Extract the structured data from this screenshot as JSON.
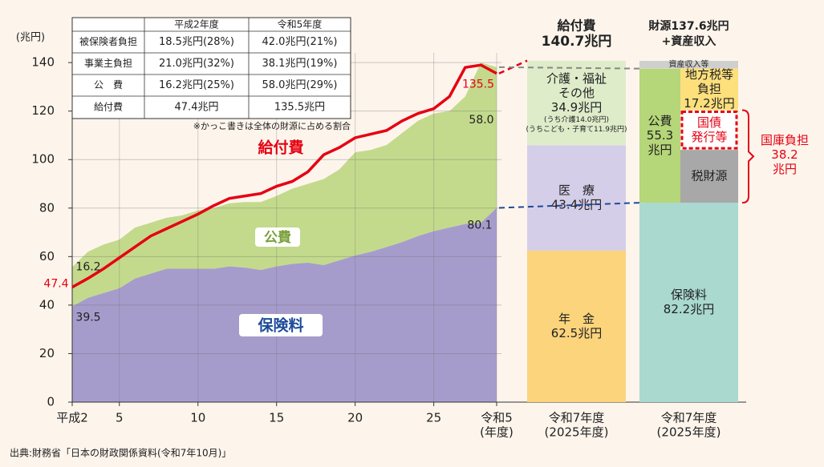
{
  "chart_data": {
    "type": "area",
    "y_label": "(兆円)",
    "x": [
      2,
      3,
      4,
      5,
      6,
      7,
      8,
      9,
      10,
      11,
      12,
      13,
      14,
      15,
      16,
      17,
      18,
      19,
      20,
      21,
      22,
      23,
      24,
      25,
      26,
      27,
      28,
      29
    ],
    "xlim": [
      2,
      29
    ],
    "xticks": [
      {
        "value": 2,
        "label": "平成2"
      },
      5,
      10,
      15,
      20,
      25,
      {
        "value": 29,
        "label": "令和5"
      }
    ],
    "x_unit": "(年度)",
    "ylim": [
      0,
      144
    ],
    "yticks": [
      0,
      20,
      40,
      60,
      80,
      100,
      120,
      140
    ],
    "grid": true,
    "series": [
      {
        "name": "保険料",
        "color": "#a69ccc",
        "values": [
          39.5,
          43,
          45,
          47,
          51,
          53,
          55,
          55,
          55,
          55,
          56,
          55.5,
          54.5,
          56,
          57,
          57.5,
          56.5,
          58.5,
          60.5,
          62,
          64,
          66,
          68.5,
          70.5,
          72,
          73.5,
          74,
          80.1
        ]
      },
      {
        "name": "公費",
        "color": "#c3da8c",
        "values": [
          16.2,
          19,
          20,
          20,
          21,
          21,
          21,
          22,
          24,
          25,
          26,
          27,
          28,
          29,
          31,
          32.5,
          35.5,
          37.5,
          42.5,
          42,
          42,
          45,
          47.5,
          48.5,
          48,
          52.5,
          66,
          58.0
        ],
        "value_labels": [
          null,
          null,
          null,
          null,
          null,
          null,
          null,
          null,
          null,
          null,
          null,
          null,
          null,
          null,
          null,
          null,
          null,
          null,
          null,
          null,
          null,
          null,
          null,
          null,
          null,
          null,
          null,
          "58.0"
        ]
      },
      {
        "name": "給付費",
        "type": "line",
        "color": "#e60012",
        "values": [
          47.4,
          51,
          55,
          59.5,
          64,
          68.5,
          71.5,
          74.5,
          77.5,
          81,
          84,
          85,
          86,
          89,
          91,
          95,
          102,
          105,
          109,
          110.5,
          112,
          116,
          119,
          121,
          126,
          138,
          139,
          135.5
        ]
      }
    ],
    "table": {
      "columns": [
        "平成2年度",
        "令和5年度"
      ],
      "rows": [
        {
          "label": "被保険者負担",
          "cells": [
            "18.5兆円(28%)",
            "42.0兆円(21%)"
          ]
        },
        {
          "label": "事業主負担",
          "cells": [
            "21.0兆円(32%)",
            "38.1兆円(19%)"
          ]
        },
        {
          "label": "公　費",
          "cells": [
            "16.2兆円(25%)",
            "58.0兆円(29%)"
          ]
        },
        {
          "label": "給付費",
          "cells": [
            "47.4兆円",
            "135.5兆円"
          ]
        }
      ],
      "note": "※かっこ書きは全体の財源に占める割合"
    },
    "bars": [
      {
        "category": "令和7年度",
        "category_sub": "(2025年度)",
        "title": "給付費",
        "title_sub": "140.7兆円",
        "segments": [
          {
            "name": [
              "年　金"
            ],
            "value": 62.5,
            "value_label": "62.5兆円",
            "color": "#fbd47c",
            "column": "full"
          },
          {
            "name": [
              "医　療"
            ],
            "value": 43.4,
            "value_label": "43.4兆円",
            "color": "#d5cee8",
            "column": "full"
          },
          {
            "name": [
              "介護・福祉",
              "その他"
            ],
            "value": 34.9,
            "value_label": "34.9兆円",
            "notes": [
              "(うち介護14.0兆円)",
              "(うちこども・子育て11.9兆円)"
            ],
            "color": "#dfecca",
            "column": "full"
          }
        ]
      },
      {
        "category": "令和7年度",
        "category_sub": "(2025年度)",
        "title": "財源137.6兆円",
        "title_sub": "+資産収入",
        "segments": [
          {
            "name": [
              "保険料"
            ],
            "value": 82.2,
            "value_label": "82.2兆円",
            "color": "#a9d9cf",
            "column": "full"
          },
          {
            "name": [
              "公費"
            ],
            "value": 55.3,
            "value_label": "55.3",
            "unit": "兆円",
            "color": "#b5d679",
            "column": "left"
          },
          {
            "name": [
              "税財源"
            ],
            "value": 21.8,
            "color": "#a8a8a8",
            "column": "right"
          },
          {
            "name": [
              "国債",
              "発行等"
            ],
            "value": 16.4,
            "color": "#ffffff",
            "border": "#e60012",
            "text_color": "#e60012",
            "column": "right"
          },
          {
            "name": [
              "地方税等",
              "負担"
            ],
            "value": 17.2,
            "value_label": "17.2兆円",
            "color": "#fde07c",
            "column": "right"
          },
          {
            "name": [
              "資産収入等"
            ],
            "value": 3.1,
            "color": "#cfcfcf",
            "column": "full",
            "small": true
          }
        ],
        "bracket": {
          "name": "国庫負担",
          "value": 38.2,
          "unit": "兆円",
          "color": "#e60012"
        }
      }
    ],
    "source": "出典:財務省「日本の財政関係資料(令和7年10月)」"
  }
}
